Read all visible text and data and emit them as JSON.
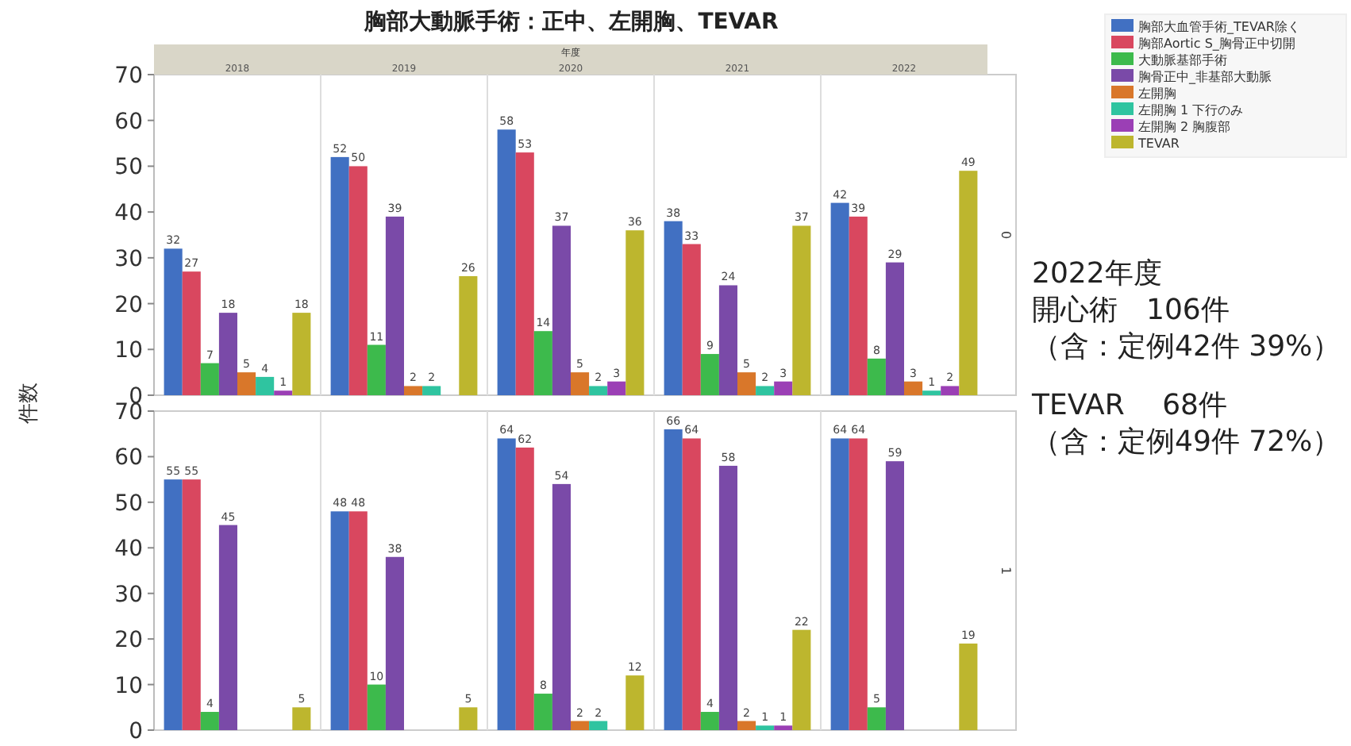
{
  "chart_data": [
    {
      "type": "bar",
      "title": "胸部大動脈手術：正中、左開胸、TEVAR",
      "xlabel": "年度",
      "ylabel": "件数",
      "subtitle": "0",
      "categories": [
        "2018",
        "2019",
        "2020",
        "2021",
        "2022"
      ],
      "ylim": [
        0,
        70
      ],
      "yticks": [
        0,
        10,
        20,
        30,
        40,
        50,
        60,
        70
      ],
      "data_labels": true,
      "legend": "right",
      "series": [
        {
          "name": "胸部大血管手術_TEVAR除く",
          "color": "#4170c2",
          "values": [
            32,
            52,
            58,
            38,
            42
          ]
        },
        {
          "name": "胸部Aortic S_胸骨正中切開",
          "color": "#d9475f",
          "values": [
            27,
            50,
            53,
            33,
            39
          ]
        },
        {
          "name": "大動脈基部手術",
          "color": "#3dba4c",
          "values": [
            7,
            11,
            14,
            9,
            8
          ]
        },
        {
          "name": "胸骨正中_非基部大動脈",
          "color": "#7a4aa8",
          "values": [
            18,
            39,
            37,
            24,
            29
          ]
        },
        {
          "name": "左開胸",
          "color": "#d9772a",
          "values": [
            5,
            2,
            5,
            5,
            3
          ]
        },
        {
          "name": "左開胸 1 下行のみ",
          "color": "#2fc4a0",
          "values": [
            4,
            2,
            2,
            2,
            1
          ]
        },
        {
          "name": "左開胸 2 胸腹部",
          "color": "#9b3fb5",
          "values": [
            1,
            null,
            3,
            3,
            2
          ]
        },
        {
          "name": "TEVAR",
          "color": "#bdb62e",
          "values": [
            18,
            26,
            36,
            37,
            49
          ]
        }
      ],
      "annotations": [
        "2022年度",
        "開心術　106件",
        "（含：定例42件 39%）",
        "TEVAR　 68件",
        "（含：定例49件 72%）"
      ]
    },
    {
      "type": "bar",
      "subtitle": "1",
      "categories": [
        "2018",
        "2019",
        "2020",
        "2021",
        "2022"
      ],
      "ylim": [
        0,
        70
      ],
      "yticks": [
        0,
        10,
        20,
        30,
        40,
        50,
        60,
        70
      ],
      "data_labels": true,
      "tick_labels": "y",
      "series": [
        {
          "color": "#4170c2",
          "values": [
            55,
            48,
            64,
            66,
            64
          ]
        },
        {
          "color": "#d9475f",
          "values": [
            55,
            48,
            62,
            64,
            64
          ]
        },
        {
          "color": "#3dba4c",
          "values": [
            4,
            10,
            8,
            4,
            5
          ]
        },
        {
          "color": "#7a4aa8",
          "values": [
            45,
            38,
            54,
            58,
            59
          ]
        },
        {
          "color": "#d9772a",
          "values": [
            null,
            null,
            2,
            2,
            null
          ]
        },
        {
          "color": "#2fc4a0",
          "values": [
            null,
            null,
            2,
            1,
            null
          ]
        },
        {
          "color": "#9b3fb5",
          "values": [
            null,
            null,
            null,
            1,
            null
          ]
        },
        {
          "color": "#bdb62e",
          "values": [
            5,
            5,
            12,
            22,
            19
          ]
        }
      ]
    }
  ]
}
